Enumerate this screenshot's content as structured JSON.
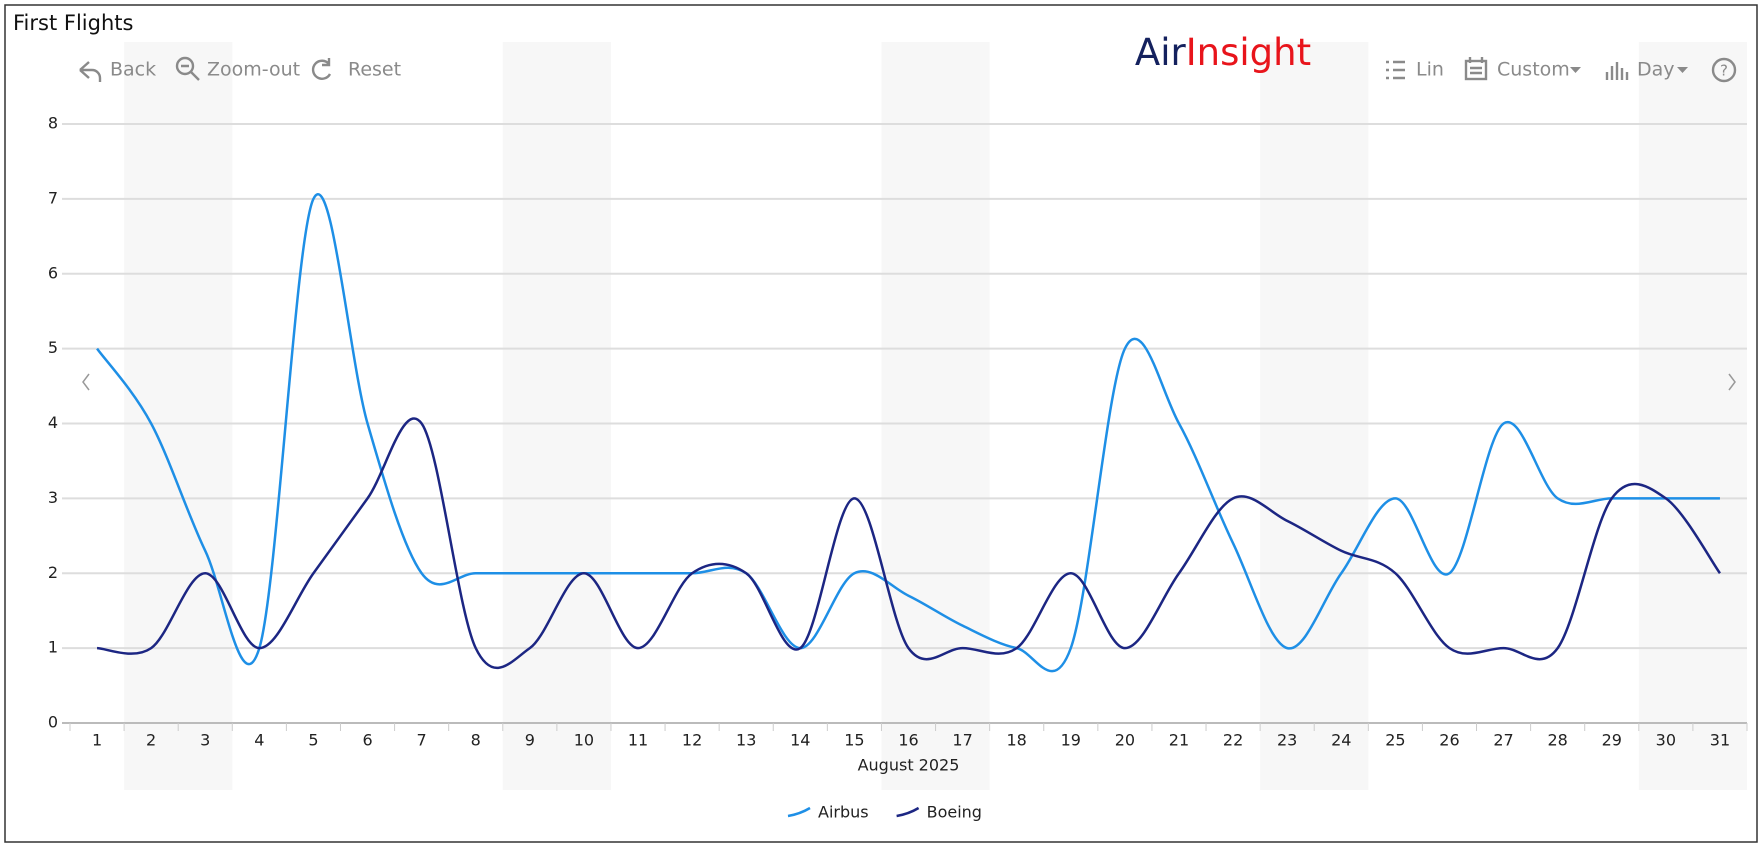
{
  "header": {
    "title": "First Flights",
    "logo": {
      "dark": "Air",
      "red": "Insight"
    }
  },
  "toolbar": {
    "left": [
      "Back",
      "Zoom-out",
      "Reset"
    ],
    "right": [
      "Lin",
      "Custom",
      "Day"
    ],
    "help": "?"
  },
  "chart_data": {
    "type": "line",
    "xlabel": "August 2025",
    "categories": [
      "1",
      "2",
      "3",
      "4",
      "5",
      "6",
      "7",
      "8",
      "9",
      "10",
      "11",
      "12",
      "13",
      "14",
      "15",
      "16",
      "17",
      "18",
      "19",
      "20",
      "21",
      "22",
      "23",
      "24",
      "25",
      "26",
      "27",
      "28",
      "29",
      "30",
      "31"
    ],
    "series": [
      {
        "name": "Airbus",
        "color": "#1e8fe6",
        "values": [
          5,
          4,
          2.3,
          1,
          7,
          4,
          2,
          2,
          2,
          2,
          2,
          2,
          2,
          1,
          2,
          1.7,
          1.3,
          1,
          1,
          5,
          4,
          2.4,
          1,
          2,
          3,
          2,
          4,
          3,
          3,
          3,
          3
        ]
      },
      {
        "name": "Boeing",
        "color": "#1c2683",
        "values": [
          1,
          1,
          2,
          1,
          2,
          3,
          4,
          1,
          1,
          2,
          1,
          2,
          2,
          1,
          3,
          1,
          1,
          1,
          2,
          1,
          2,
          3,
          2.7,
          2.3,
          2,
          1,
          1,
          1,
          3,
          3,
          2
        ]
      }
    ],
    "ylim": [
      0,
      8
    ],
    "yticks": [
      0,
      1,
      2,
      3,
      4,
      5,
      6,
      7,
      8
    ],
    "grid": true
  }
}
